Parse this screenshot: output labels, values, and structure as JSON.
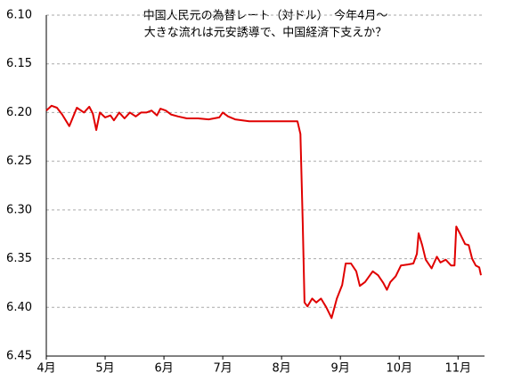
{
  "chart_data": {
    "type": "line",
    "title": [
      "中国人民元の為替レート（対ドル）　今年4月～",
      "大きな流れは元安誘導で、中国経済下支えか？"
    ],
    "x": [
      0,
      0.09,
      0.18,
      0.27,
      0.39,
      0.52,
      0.64,
      0.73,
      0.79,
      0.85,
      0.91,
      1.0,
      1.09,
      1.15,
      1.24,
      1.33,
      1.42,
      1.52,
      1.61,
      1.7,
      1.79,
      1.88,
      1.94,
      2.03,
      2.12,
      2.24,
      2.39,
      2.58,
      2.76,
      2.94,
      3.0,
      3.09,
      3.21,
      3.45,
      3.76,
      4.03,
      4.27,
      4.32,
      4.36,
      4.39,
      4.44,
      4.52,
      4.59,
      4.67,
      4.76,
      4.85,
      4.94,
      5.03,
      5.09,
      5.18,
      5.27,
      5.33,
      5.42,
      5.55,
      5.64,
      5.73,
      5.79,
      5.85,
      5.94,
      6.03,
      6.15,
      6.24,
      6.3,
      6.33,
      6.39,
      6.45,
      6.55,
      6.64,
      6.7,
      6.79,
      6.88,
      6.94,
      6.97,
      7.03,
      7.12,
      7.18,
      7.24,
      7.3,
      7.36,
      7.39
    ],
    "values": [
      6.198,
      6.193,
      6.195,
      6.202,
      6.214,
      6.195,
      6.2,
      6.194,
      6.201,
      6.218,
      6.2,
      6.205,
      6.203,
      6.208,
      6.2,
      6.206,
      6.2,
      6.204,
      6.2,
      6.2,
      6.198,
      6.203,
      6.196,
      6.198,
      6.202,
      6.204,
      6.206,
      6.206,
      6.207,
      6.205,
      6.2,
      6.204,
      6.207,
      6.209,
      6.209,
      6.209,
      6.209,
      6.222,
      6.313,
      6.395,
      6.399,
      6.391,
      6.395,
      6.391,
      6.4,
      6.411,
      6.391,
      6.377,
      6.355,
      6.355,
      6.363,
      6.378,
      6.374,
      6.363,
      6.367,
      6.375,
      6.382,
      6.374,
      6.368,
      6.357,
      6.356,
      6.355,
      6.345,
      6.324,
      6.336,
      6.351,
      6.36,
      6.348,
      6.354,
      6.351,
      6.357,
      6.357,
      6.317,
      6.324,
      6.335,
      6.336,
      6.35,
      6.357,
      6.359,
      6.367
    ],
    "color": "#e00000",
    "xlim": [
      0,
      7.45
    ],
    "xticks": [
      {
        "value": 0,
        "label": "4月"
      },
      {
        "value": 1,
        "label": "5月"
      },
      {
        "value": 2,
        "label": "6月"
      },
      {
        "value": 3,
        "label": "7月"
      },
      {
        "value": 4,
        "label": "8月"
      },
      {
        "value": 5,
        "label": "9月"
      },
      {
        "value": 6,
        "label": "10月"
      },
      {
        "value": 7,
        "label": "11月"
      }
    ],
    "ylim": [
      6.1,
      6.45
    ],
    "y_inverted": true,
    "yticks": [
      {
        "value": 6.1,
        "label": "6.10"
      },
      6.15,
      {
        "value": 6.2,
        "label": "6.20"
      },
      6.25,
      {
        "value": 6.3,
        "label": "6.30"
      },
      6.35,
      {
        "value": 6.4,
        "label": "6.40"
      },
      6.45
    ],
    "grid": true
  }
}
